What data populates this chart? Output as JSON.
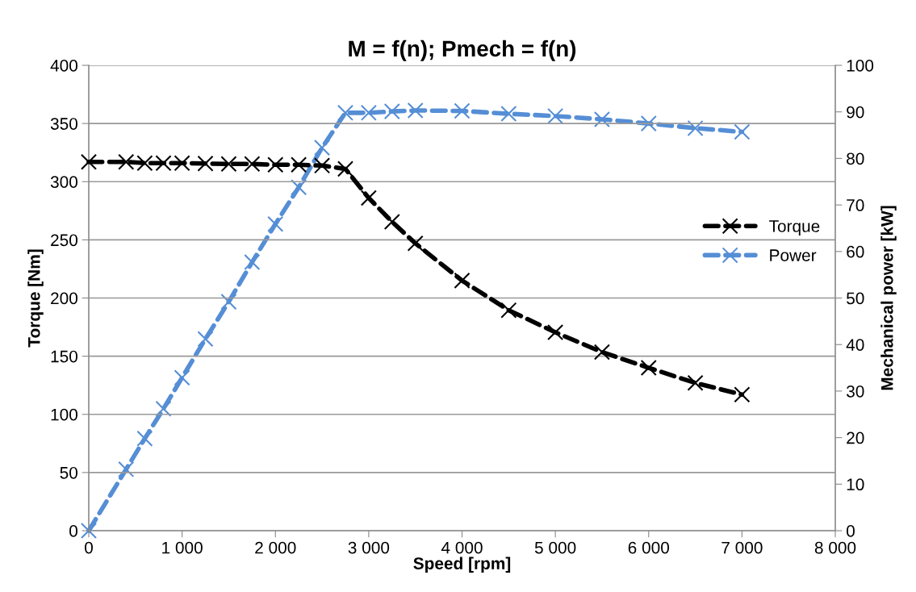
{
  "chart_data": {
    "type": "line",
    "title": "M = f(n); Pmech = f(n)",
    "xlabel": "Speed [rpm]",
    "ylabel": "Torque [Nm]",
    "y2label": "Mechanical power [kW]",
    "x": [
      0,
      400,
      600,
      800,
      1000,
      1250,
      1500,
      1750,
      2000,
      2250,
      2500,
      2750,
      3000,
      3250,
      3500,
      4000,
      4500,
      5000,
      5500,
      6000,
      6500,
      7000
    ],
    "series": [
      {
        "name": "Torque",
        "color": "#000000",
        "values": [
          317,
          317,
          316,
          316,
          316,
          315.6,
          315.2,
          315.2,
          314.5,
          314.5,
          313.8,
          311,
          286,
          265.5,
          247,
          215,
          189.5,
          170.5,
          153.5,
          140,
          127,
          117
        ]
      },
      {
        "name": "Power",
        "color": "#558ed5",
        "axis": "y2",
        "values": [
          0,
          13.2,
          19.8,
          26.2,
          32.9,
          41.2,
          49.2,
          57.7,
          65.9,
          73.8,
          82.3,
          89.8,
          89.8,
          90.1,
          90.3,
          90.2,
          89.6,
          89.1,
          88.4,
          87.5,
          86.5,
          85.7
        ]
      }
    ],
    "xlim": [
      0,
      8000
    ],
    "xticks": [
      0,
      {
        "value": 1000,
        "label": "1 000"
      },
      {
        "value": 2000,
        "label": "2 000"
      },
      {
        "value": 3000,
        "label": "3 000"
      },
      {
        "value": 4000,
        "label": "4 000"
      },
      {
        "value": 5000,
        "label": "5 000"
      },
      {
        "value": 6000,
        "label": "6 000"
      },
      {
        "value": 7000,
        "label": "7 000"
      },
      {
        "value": 8000,
        "label": "8 000"
      }
    ],
    "ylim": [
      0,
      400
    ],
    "yticks": [
      0,
      50,
      100,
      150,
      200,
      250,
      300,
      350,
      400
    ],
    "y2lim": [
      0,
      100
    ],
    "y2ticks": [
      0,
      10,
      20,
      30,
      40,
      50,
      60,
      70,
      80,
      90,
      100
    ],
    "grid": "y",
    "legend": "right",
    "marker": "cross",
    "line_style": "dashed"
  }
}
